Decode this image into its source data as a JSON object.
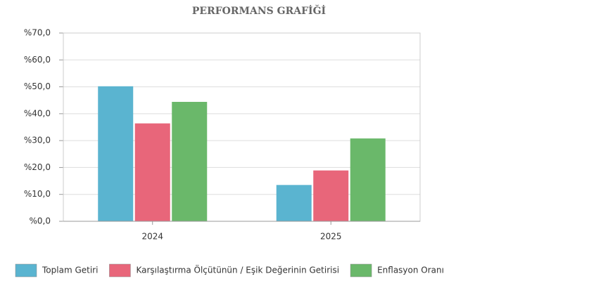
{
  "chart_data": {
    "type": "bar",
    "title": "PERFORMANS GRAFİĞİ",
    "categories": [
      "2024",
      "2025"
    ],
    "series": [
      {
        "name": "Toplam Getiri",
        "color": "#5ab4d0",
        "values": [
          50.2,
          13.5
        ]
      },
      {
        "name": "Karşılaştırma Ölçütünün / Eşik Değerinin Getirisi",
        "color": "#e8667a",
        "values": [
          36.4,
          18.9
        ]
      },
      {
        "name": "Enflasyon Oranı",
        "color": "#6ab86a",
        "values": [
          44.4,
          30.8
        ]
      }
    ],
    "ylim": [
      0,
      70
    ],
    "yticks": [
      {
        "value": 0,
        "label": "%0,0"
      },
      {
        "value": 10,
        "label": "%10,0"
      },
      {
        "value": 20,
        "label": "%20,0"
      },
      {
        "value": 30,
        "label": "%30,0"
      },
      {
        "value": 40,
        "label": "%40,0"
      },
      {
        "value": 50,
        "label": "%50,0"
      },
      {
        "value": 60,
        "label": "%60,0"
      },
      {
        "value": 70,
        "label": "%70,0"
      }
    ],
    "grid": true,
    "legend": "bottom"
  }
}
